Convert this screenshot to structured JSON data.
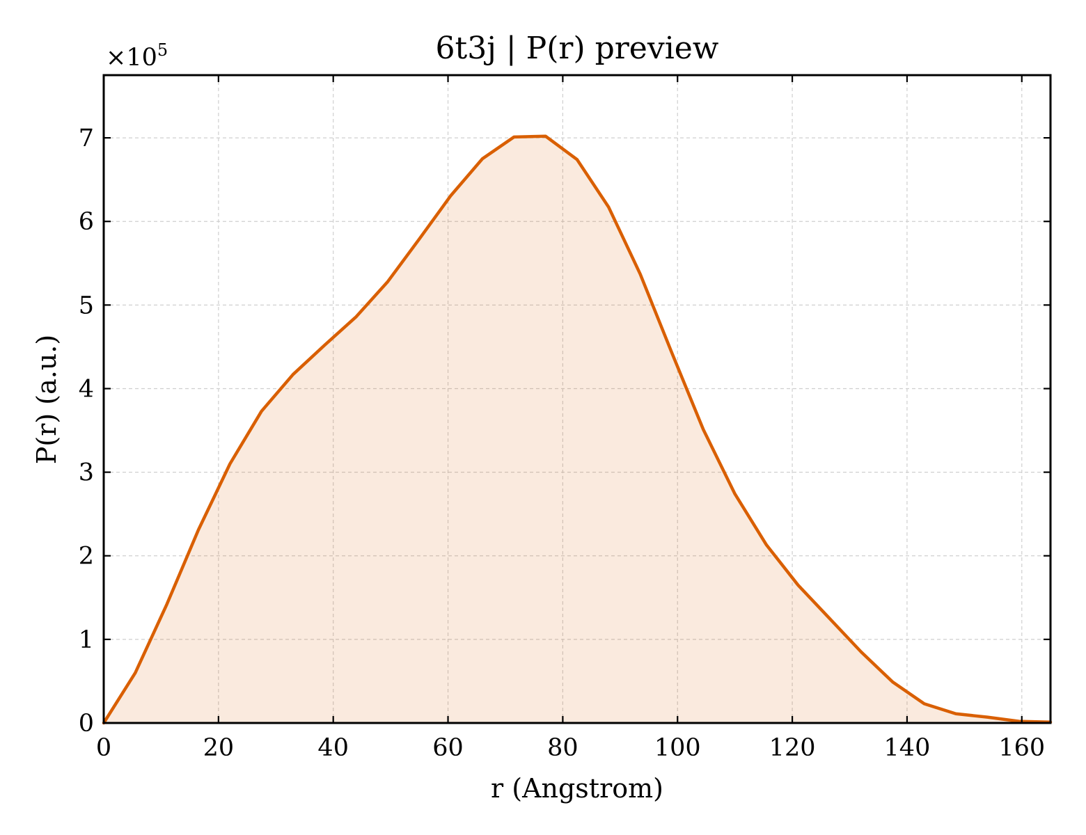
{
  "chart_data": {
    "type": "area",
    "title": "6t3j | P(r) preview",
    "xlabel": "r (Angstrom)",
    "ylabel": "P(r) (a.u.)",
    "y_offset_label": "×10",
    "y_offset_exponent": "5",
    "xlim": [
      0,
      165
    ],
    "ylim": [
      0,
      7.75
    ],
    "xticks": [
      0,
      20,
      40,
      60,
      80,
      100,
      120,
      140,
      160
    ],
    "xtick_labels": [
      "0",
      "20",
      "40",
      "60",
      "80",
      "100",
      "120",
      "140",
      "160"
    ],
    "yticks": [
      0,
      1,
      2,
      3,
      4,
      5,
      6,
      7
    ],
    "ytick_labels": [
      "0",
      "1",
      "2",
      "3",
      "4",
      "5",
      "6",
      "7"
    ],
    "grid": true,
    "legend": "none",
    "series": [
      {
        "color": "#d95f02",
        "fill_color": "#d95f02",
        "fill_opacity": 0.13,
        "x": [
          0,
          5.5,
          11,
          16.5,
          22,
          27.5,
          33,
          38.5,
          44,
          49.5,
          55,
          60.5,
          66,
          71.5,
          77,
          82.5,
          88,
          93.5,
          99,
          104.5,
          110,
          115.5,
          121,
          126.5,
          132,
          137.5,
          143,
          148.5,
          154,
          159.5,
          165
        ],
        "y": [
          0,
          0.6,
          1.42,
          2.31,
          3.1,
          3.73,
          4.17,
          4.52,
          4.86,
          5.28,
          5.79,
          6.31,
          6.75,
          7.01,
          7.02,
          6.74,
          6.17,
          5.37,
          4.43,
          3.51,
          2.74,
          2.13,
          1.65,
          1.25,
          0.85,
          0.49,
          0.23,
          0.11,
          0.07,
          0.02,
          0.01
        ]
      }
    ]
  }
}
